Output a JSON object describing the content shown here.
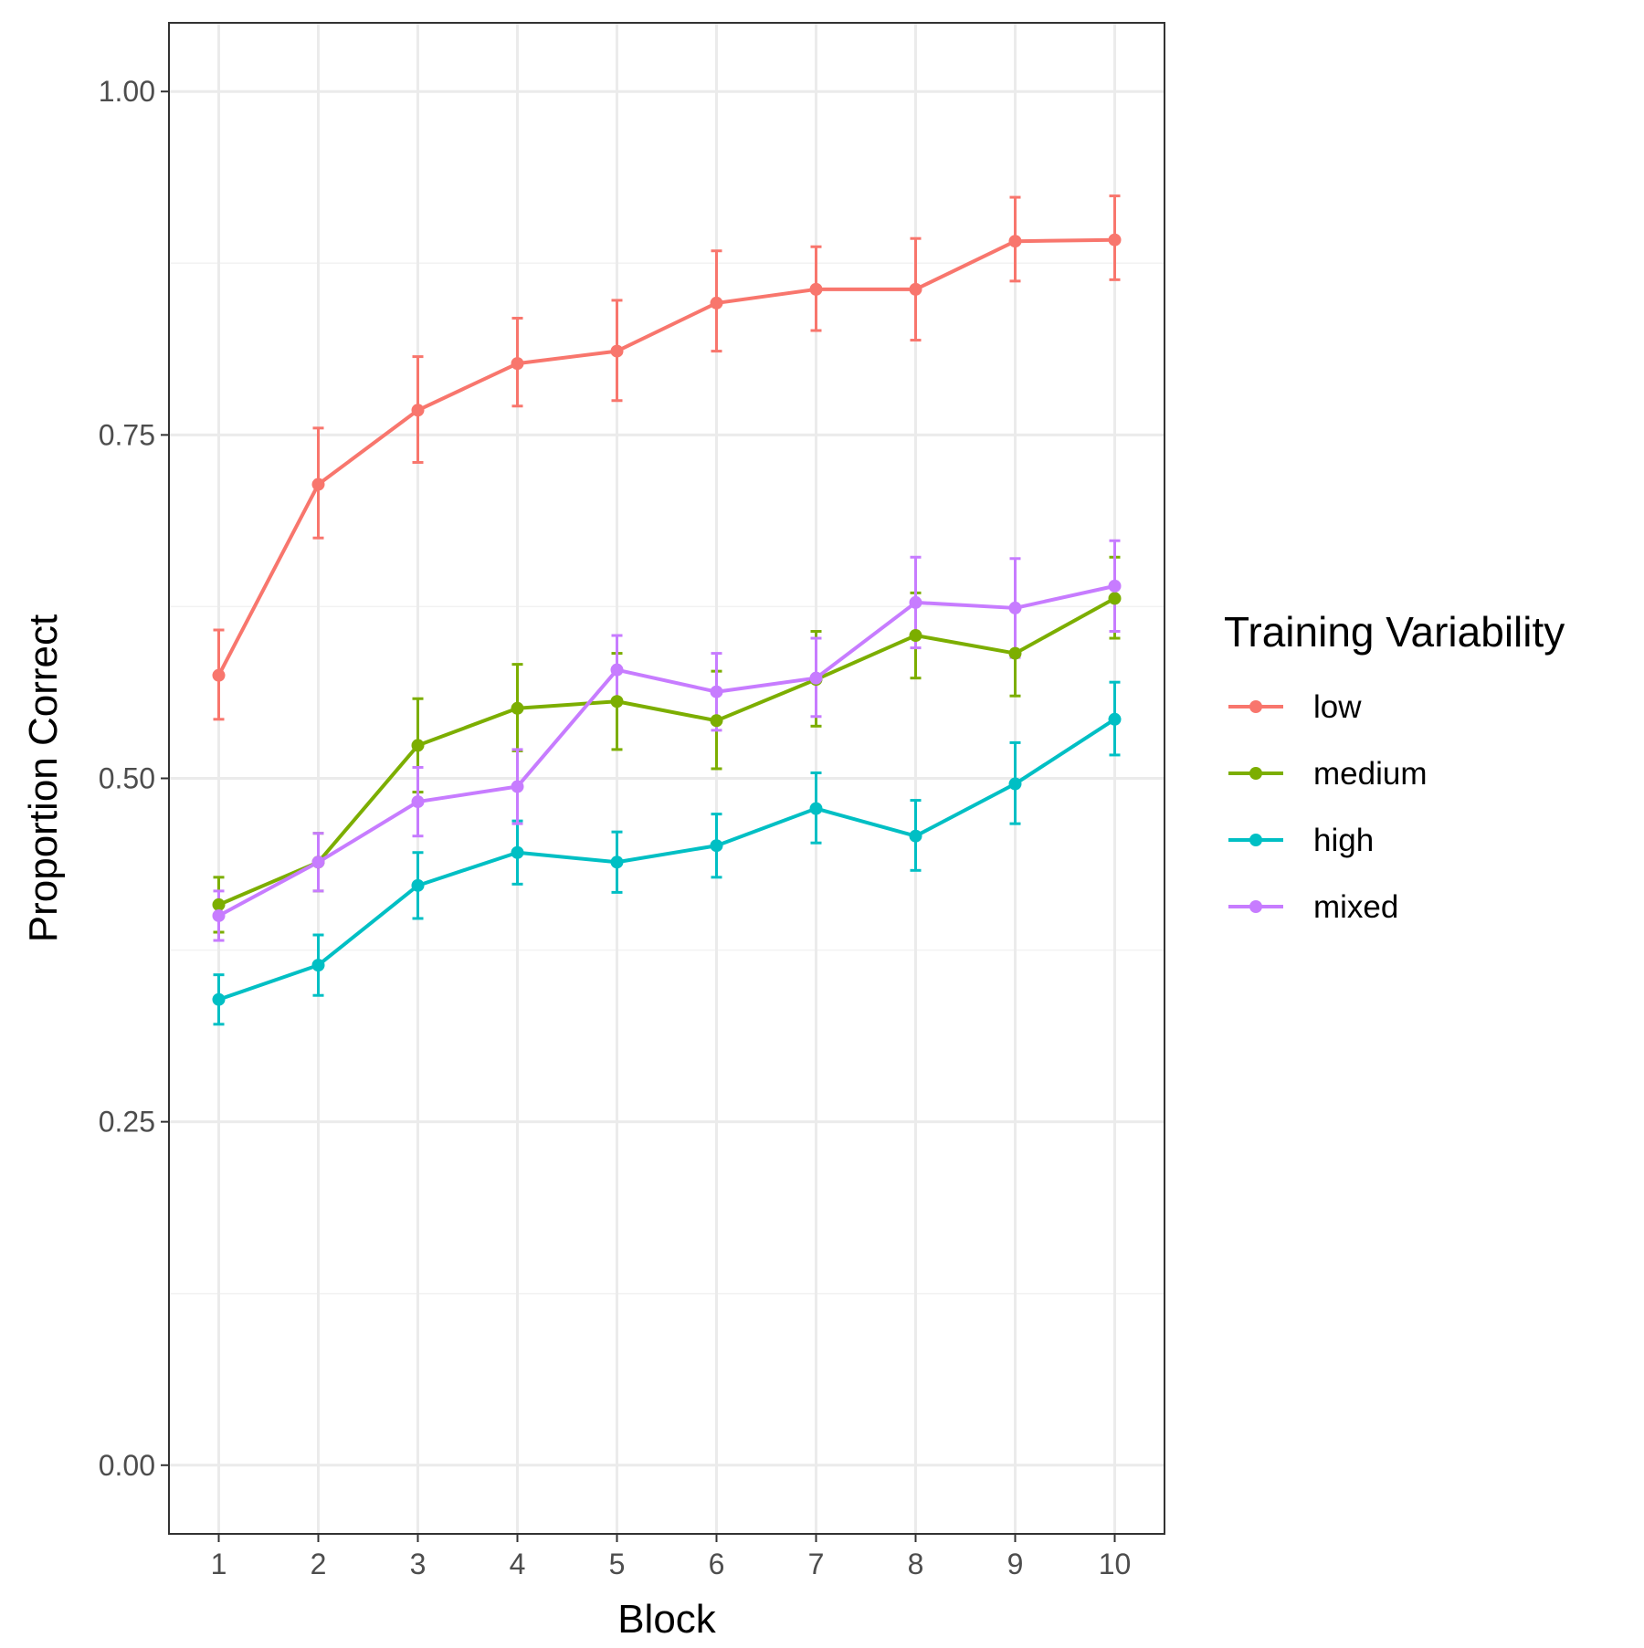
{
  "chart_data": {
    "type": "line",
    "xlabel": "Block",
    "ylabel": "Proportion Correct",
    "x": [
      1,
      2,
      3,
      4,
      5,
      6,
      7,
      8,
      9,
      10
    ],
    "x_ticks": [
      "1",
      "2",
      "3",
      "4",
      "5",
      "6",
      "7",
      "8",
      "9",
      "10"
    ],
    "y_ticks": [
      "0.00",
      "0.25",
      "0.50",
      "0.75",
      "1.00"
    ],
    "y_tick_values": [
      0,
      0.25,
      0.5,
      0.75,
      1.0
    ],
    "xlim": [
      0.5,
      10.5
    ],
    "ylim": [
      -0.05,
      1.05
    ],
    "grid": true,
    "error_bars": true,
    "legend": {
      "title": "Training Variability",
      "placement": "right"
    },
    "series": [
      {
        "name": "low",
        "color": "#F8766D",
        "values": [
          0.575,
          0.714,
          0.768,
          0.802,
          0.811,
          0.846,
          0.856,
          0.856,
          0.891,
          0.892
        ],
        "lower": [
          0.543,
          0.675,
          0.73,
          0.771,
          0.775,
          0.811,
          0.826,
          0.819,
          0.862,
          0.863
        ],
        "upper": [
          0.608,
          0.755,
          0.807,
          0.835,
          0.848,
          0.884,
          0.887,
          0.893,
          0.923,
          0.924
        ]
      },
      {
        "name": "medium",
        "color": "#7CAE00",
        "values": [
          0.408,
          0.439,
          0.524,
          0.551,
          0.556,
          0.542,
          0.572,
          0.604,
          0.591,
          0.631
        ],
        "lower": [
          0.388,
          0.418,
          0.49,
          0.52,
          0.521,
          0.507,
          0.538,
          0.573,
          0.56,
          0.602
        ],
        "upper": [
          0.428,
          0.46,
          0.558,
          0.583,
          0.591,
          0.578,
          0.607,
          0.635,
          0.623,
          0.661
        ]
      },
      {
        "name": "high",
        "color": "#00BFC4",
        "values": [
          0.339,
          0.364,
          0.422,
          0.446,
          0.439,
          0.451,
          0.478,
          0.458,
          0.496,
          0.543
        ],
        "lower": [
          0.321,
          0.342,
          0.398,
          0.423,
          0.417,
          0.428,
          0.453,
          0.433,
          0.467,
          0.517
        ],
        "upper": [
          0.357,
          0.386,
          0.446,
          0.469,
          0.461,
          0.474,
          0.504,
          0.484,
          0.526,
          0.57
        ]
      },
      {
        "name": "mixed",
        "color": "#C77CFF",
        "values": [
          0.4,
          0.439,
          0.483,
          0.494,
          0.579,
          0.563,
          0.573,
          0.628,
          0.624,
          0.64
        ],
        "lower": [
          0.382,
          0.418,
          0.458,
          0.467,
          0.555,
          0.535,
          0.545,
          0.595,
          0.588,
          0.607
        ],
        "upper": [
          0.418,
          0.46,
          0.508,
          0.521,
          0.604,
          0.591,
          0.602,
          0.661,
          0.66,
          0.673
        ]
      }
    ]
  }
}
